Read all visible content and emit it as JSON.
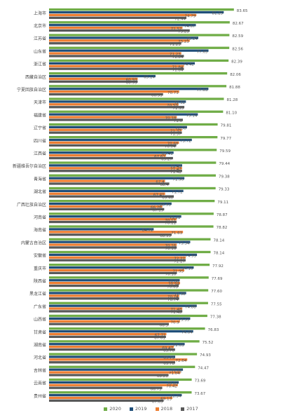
{
  "chart_data": {
    "type": "bar",
    "orientation": "horizontal",
    "grid": false,
    "legend_position": "bottom",
    "xlim": [
      40,
      86
    ],
    "categories": [
      "上海市",
      "北京市",
      "江苏省",
      "山东省",
      "浙江省",
      "西藏自治区",
      "宁夏回族自治区",
      "天津市",
      "福建省",
      "辽宁省",
      "四川省",
      "江西省",
      "新疆维吾尔自治区",
      "青海省",
      "湖北省",
      "广西壮族自治区",
      "河南省",
      "海南省",
      "内蒙古自治区",
      "安徽省",
      "重庆市",
      "陕西省",
      "黑龙江省",
      "广东省",
      "山西省",
      "甘肃省",
      "湖南省",
      "河北省",
      "吉林省",
      "云南省",
      "贵州省"
    ],
    "series": [
      {
        "name": "2020",
        "color": "#70ad47",
        "values": [
          83.65,
          82.67,
          82.59,
          82.56,
          82.39,
          82.06,
          81.88,
          81.28,
          81.1,
          79.81,
          79.77,
          79.59,
          79.44,
          79.38,
          79.33,
          79.11,
          78.87,
          78.82,
          78.14,
          78.14,
          77.92,
          77.69,
          77.6,
          77.55,
          77.38,
          76.83,
          75.52,
          74.93,
          74.47,
          73.69,
          73.67
        ]
      },
      {
        "name": "2019",
        "color": "#1f4e79",
        "values": [
          81.25,
          74.67,
          75.24,
          77.65,
          74.42,
          65.14,
          77.63,
          72.32,
          75.14,
          72.58,
          73.72,
          69.41,
          71.43,
          71.96,
          71.72,
          68.93,
          71.22,
          64.71,
          73.34,
          74.93,
          74.16,
          70.86,
          72.38,
          74.88,
          73.33,
          74.04,
          72.03,
          69.79,
          71.62,
          70.63,
          71.34
        ]
      },
      {
        "name": "2018",
        "color": "#ed7d31",
        "values": [
          74.79,
          71.52,
          73.23,
          71.23,
          71.84,
          60.93,
          70.73,
          70.59,
          70.18,
          71.37,
          70.68,
          67.61,
          71.42,
          67.4,
          67.41,
          66.76,
          70.11,
          71.63,
          70.16,
          72.27,
          71.95,
          70.94,
          70.74,
          71.48,
          70.9,
          67.71,
          69.47,
          72.64,
          71.04,
          70.42,
          69.13
        ]
      },
      {
        "name": "2017",
        "color": "#595959",
        "values": [
          72.44,
          73.23,
          71.23,
          71.84,
          71.84,
          60.93,
          66.93,
          71.95,
          71.6,
          71.37,
          70.04,
          69.27,
          71.42,
          68.4,
          69.46,
          67.19,
          70.11,
          68.95,
          70.16,
          72.27,
          70.18,
          70.63,
          70.74,
          71.48,
          68.3,
          67.61,
          69.76,
          69.78,
          68.23,
          66.73,
          67.05
        ]
      }
    ]
  }
}
